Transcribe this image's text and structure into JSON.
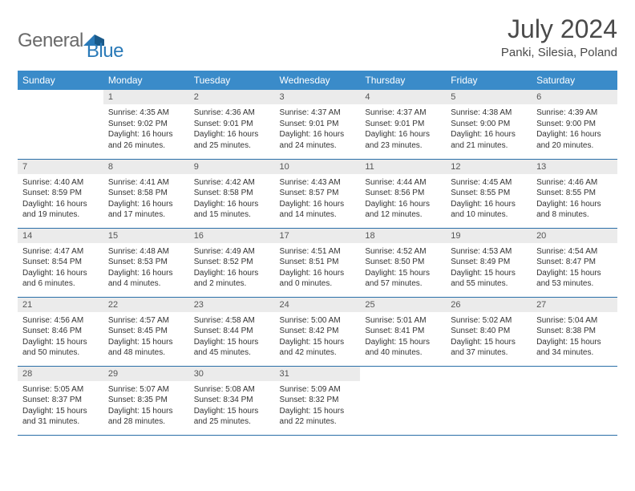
{
  "brand": {
    "word1": "General",
    "word2": "Blue"
  },
  "title": "July 2024",
  "location": "Panki, Silesia, Poland",
  "colors": {
    "header_bg": "#3a8bc9",
    "header_text": "#ffffff",
    "daynum_bg": "#ebebeb",
    "rule": "#2a6fa8",
    "logo_gray": "#6a6a6a",
    "logo_blue": "#2a7ab8"
  },
  "weekdays": [
    "Sunday",
    "Monday",
    "Tuesday",
    "Wednesday",
    "Thursday",
    "Friday",
    "Saturday"
  ],
  "weeks": [
    [
      {
        "n": "",
        "sr": "",
        "ss": "",
        "dl": "",
        "empty": true
      },
      {
        "n": "1",
        "sr": "Sunrise: 4:35 AM",
        "ss": "Sunset: 9:02 PM",
        "dl": "Daylight: 16 hours and 26 minutes."
      },
      {
        "n": "2",
        "sr": "Sunrise: 4:36 AM",
        "ss": "Sunset: 9:01 PM",
        "dl": "Daylight: 16 hours and 25 minutes."
      },
      {
        "n": "3",
        "sr": "Sunrise: 4:37 AM",
        "ss": "Sunset: 9:01 PM",
        "dl": "Daylight: 16 hours and 24 minutes."
      },
      {
        "n": "4",
        "sr": "Sunrise: 4:37 AM",
        "ss": "Sunset: 9:01 PM",
        "dl": "Daylight: 16 hours and 23 minutes."
      },
      {
        "n": "5",
        "sr": "Sunrise: 4:38 AM",
        "ss": "Sunset: 9:00 PM",
        "dl": "Daylight: 16 hours and 21 minutes."
      },
      {
        "n": "6",
        "sr": "Sunrise: 4:39 AM",
        "ss": "Sunset: 9:00 PM",
        "dl": "Daylight: 16 hours and 20 minutes."
      }
    ],
    [
      {
        "n": "7",
        "sr": "Sunrise: 4:40 AM",
        "ss": "Sunset: 8:59 PM",
        "dl": "Daylight: 16 hours and 19 minutes."
      },
      {
        "n": "8",
        "sr": "Sunrise: 4:41 AM",
        "ss": "Sunset: 8:58 PM",
        "dl": "Daylight: 16 hours and 17 minutes."
      },
      {
        "n": "9",
        "sr": "Sunrise: 4:42 AM",
        "ss": "Sunset: 8:58 PM",
        "dl": "Daylight: 16 hours and 15 minutes."
      },
      {
        "n": "10",
        "sr": "Sunrise: 4:43 AM",
        "ss": "Sunset: 8:57 PM",
        "dl": "Daylight: 16 hours and 14 minutes."
      },
      {
        "n": "11",
        "sr": "Sunrise: 4:44 AM",
        "ss": "Sunset: 8:56 PM",
        "dl": "Daylight: 16 hours and 12 minutes."
      },
      {
        "n": "12",
        "sr": "Sunrise: 4:45 AM",
        "ss": "Sunset: 8:55 PM",
        "dl": "Daylight: 16 hours and 10 minutes."
      },
      {
        "n": "13",
        "sr": "Sunrise: 4:46 AM",
        "ss": "Sunset: 8:55 PM",
        "dl": "Daylight: 16 hours and 8 minutes."
      }
    ],
    [
      {
        "n": "14",
        "sr": "Sunrise: 4:47 AM",
        "ss": "Sunset: 8:54 PM",
        "dl": "Daylight: 16 hours and 6 minutes."
      },
      {
        "n": "15",
        "sr": "Sunrise: 4:48 AM",
        "ss": "Sunset: 8:53 PM",
        "dl": "Daylight: 16 hours and 4 minutes."
      },
      {
        "n": "16",
        "sr": "Sunrise: 4:49 AM",
        "ss": "Sunset: 8:52 PM",
        "dl": "Daylight: 16 hours and 2 minutes."
      },
      {
        "n": "17",
        "sr": "Sunrise: 4:51 AM",
        "ss": "Sunset: 8:51 PM",
        "dl": "Daylight: 16 hours and 0 minutes."
      },
      {
        "n": "18",
        "sr": "Sunrise: 4:52 AM",
        "ss": "Sunset: 8:50 PM",
        "dl": "Daylight: 15 hours and 57 minutes."
      },
      {
        "n": "19",
        "sr": "Sunrise: 4:53 AM",
        "ss": "Sunset: 8:49 PM",
        "dl": "Daylight: 15 hours and 55 minutes."
      },
      {
        "n": "20",
        "sr": "Sunrise: 4:54 AM",
        "ss": "Sunset: 8:47 PM",
        "dl": "Daylight: 15 hours and 53 minutes."
      }
    ],
    [
      {
        "n": "21",
        "sr": "Sunrise: 4:56 AM",
        "ss": "Sunset: 8:46 PM",
        "dl": "Daylight: 15 hours and 50 minutes."
      },
      {
        "n": "22",
        "sr": "Sunrise: 4:57 AM",
        "ss": "Sunset: 8:45 PM",
        "dl": "Daylight: 15 hours and 48 minutes."
      },
      {
        "n": "23",
        "sr": "Sunrise: 4:58 AM",
        "ss": "Sunset: 8:44 PM",
        "dl": "Daylight: 15 hours and 45 minutes."
      },
      {
        "n": "24",
        "sr": "Sunrise: 5:00 AM",
        "ss": "Sunset: 8:42 PM",
        "dl": "Daylight: 15 hours and 42 minutes."
      },
      {
        "n": "25",
        "sr": "Sunrise: 5:01 AM",
        "ss": "Sunset: 8:41 PM",
        "dl": "Daylight: 15 hours and 40 minutes."
      },
      {
        "n": "26",
        "sr": "Sunrise: 5:02 AM",
        "ss": "Sunset: 8:40 PM",
        "dl": "Daylight: 15 hours and 37 minutes."
      },
      {
        "n": "27",
        "sr": "Sunrise: 5:04 AM",
        "ss": "Sunset: 8:38 PM",
        "dl": "Daylight: 15 hours and 34 minutes."
      }
    ],
    [
      {
        "n": "28",
        "sr": "Sunrise: 5:05 AM",
        "ss": "Sunset: 8:37 PM",
        "dl": "Daylight: 15 hours and 31 minutes."
      },
      {
        "n": "29",
        "sr": "Sunrise: 5:07 AM",
        "ss": "Sunset: 8:35 PM",
        "dl": "Daylight: 15 hours and 28 minutes."
      },
      {
        "n": "30",
        "sr": "Sunrise: 5:08 AM",
        "ss": "Sunset: 8:34 PM",
        "dl": "Daylight: 15 hours and 25 minutes."
      },
      {
        "n": "31",
        "sr": "Sunrise: 5:09 AM",
        "ss": "Sunset: 8:32 PM",
        "dl": "Daylight: 15 hours and 22 minutes."
      },
      {
        "n": "",
        "sr": "",
        "ss": "",
        "dl": "",
        "empty": true
      },
      {
        "n": "",
        "sr": "",
        "ss": "",
        "dl": "",
        "empty": true
      },
      {
        "n": "",
        "sr": "",
        "ss": "",
        "dl": "",
        "empty": true
      }
    ]
  ]
}
